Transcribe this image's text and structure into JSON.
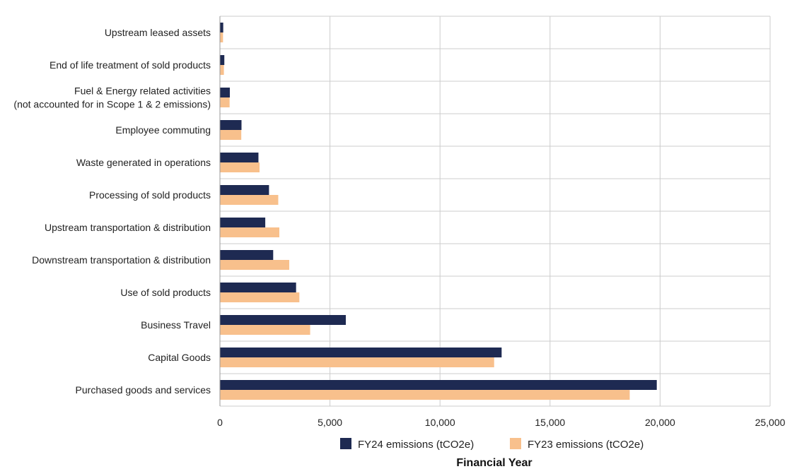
{
  "chart_data": {
    "type": "bar",
    "orientation": "horizontal",
    "categories": [
      "Upstream leased assets",
      "End of life treatment of sold products",
      [
        "Fuel & Energy related activities",
        "(not accounted for in Scope 1 & 2 emissions)"
      ],
      "Employee commuting",
      "Waste generated in operations",
      "Processing of sold products",
      "Upstream transportation & distribution",
      "Downstream transportation & distribution",
      "Use of sold products",
      "Business Travel",
      "Capital Goods",
      "Purchased goods and services"
    ],
    "series": [
      {
        "name": "FY24 emissions (tCO2e)",
        "color": "#1e2a52",
        "values": [
          150,
          200,
          450,
          980,
          1750,
          2230,
          2060,
          2420,
          3460,
          5720,
          12800,
          19850
        ]
      },
      {
        "name": "FY23 emissions (tCO2e)",
        "color": "#f8c08c",
        "values": [
          140,
          180,
          440,
          970,
          1800,
          2650,
          2700,
          3150,
          3610,
          4100,
          12460,
          18620
        ]
      }
    ],
    "xlabel": "Financial Year",
    "xlim": [
      0,
      25000
    ],
    "xticks": [
      0,
      5000,
      10000,
      15000,
      20000,
      25000
    ],
    "xtick_labels": [
      "0",
      "5,000",
      "10,000",
      "15,000",
      "20,000",
      "25,000"
    ],
    "grid": true,
    "legend_position": "bottom"
  }
}
